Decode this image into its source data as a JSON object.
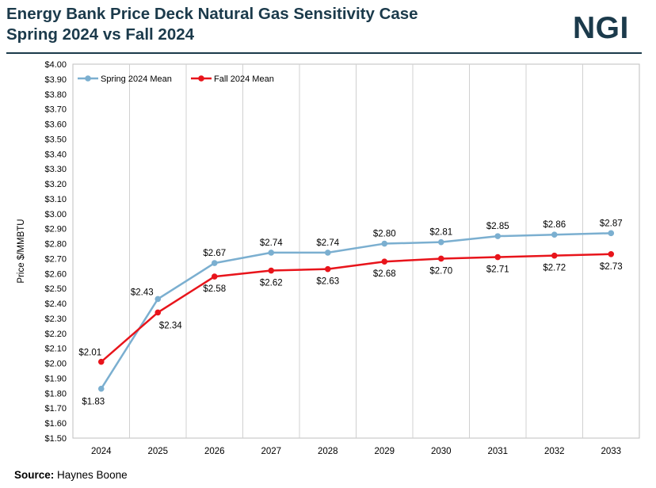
{
  "header": {
    "title_line1": "Energy Bank Price Deck Natural Gas Sensitivity Case",
    "title_line2": "Spring 2024 vs Fall 2024",
    "brand": "NGI"
  },
  "footer": {
    "source_label": "Source:",
    "source_value": "Haynes Boone"
  },
  "chart_data": {
    "type": "line",
    "title": "Energy Bank Price Deck Natural Gas Sensitivity Case Spring 2024 vs Fall 2024",
    "xlabel": "",
    "ylabel": "Price $/MMBTU",
    "categories": [
      "2024",
      "2025",
      "2026",
      "2027",
      "2028",
      "2029",
      "2030",
      "2031",
      "2032",
      "2033"
    ],
    "series": [
      {
        "name": "Spring 2024 Mean",
        "color": "#7bafd0",
        "values": [
          1.83,
          2.43,
          2.67,
          2.74,
          2.74,
          2.8,
          2.81,
          2.85,
          2.86,
          2.87
        ],
        "labels": [
          "$1.83",
          "$2.43",
          "$2.67",
          "$2.74",
          "$2.74",
          "$2.80",
          "$2.81",
          "$2.85",
          "$2.86",
          "$2.87"
        ]
      },
      {
        "name": "Fall 2024 Mean",
        "color": "#e8141b",
        "values": [
          2.01,
          2.34,
          2.58,
          2.62,
          2.63,
          2.68,
          2.7,
          2.71,
          2.72,
          2.73
        ],
        "labels": [
          "$2.01",
          "$2.34",
          "$2.58",
          "$2.62",
          "$2.63",
          "$2.68",
          "$2.70",
          "$2.71",
          "$2.72",
          "$2.73"
        ]
      }
    ],
    "ylim": [
      1.5,
      4.0
    ],
    "ystep": 0.1,
    "ytick_prefix": "$",
    "grid": {
      "vertical": true,
      "horizontal": false
    },
    "legend": "top-left"
  }
}
